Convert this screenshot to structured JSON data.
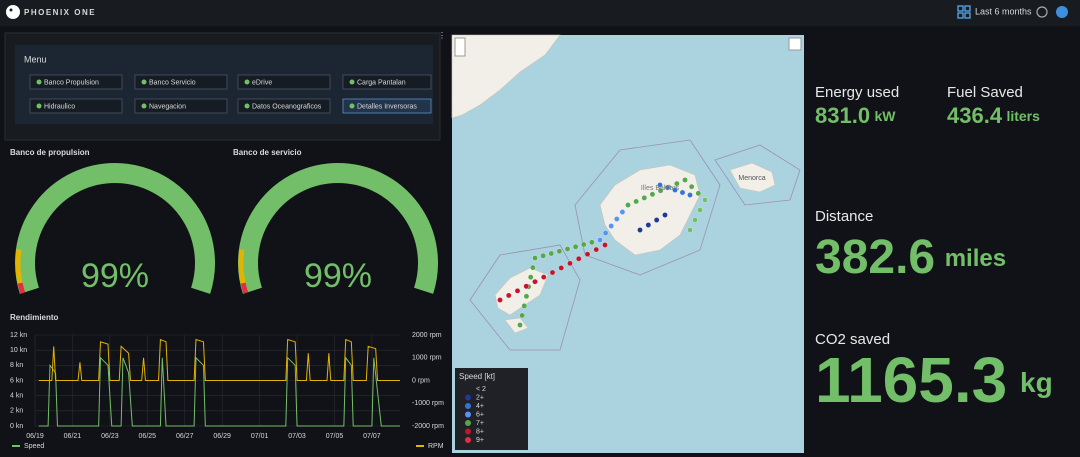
{
  "header": {
    "brand": "PHOENIX ONE",
    "time_range": "Last 6 months"
  },
  "menu": {
    "title": "Menu",
    "items": [
      "Banco Propulsion",
      "Banco Servicio",
      "eDrive",
      "Carga Pantalan",
      "Hidraulico",
      "Navegacion",
      "Datos Oceanograficos",
      "Detalles Inversoras"
    ]
  },
  "gauges": [
    {
      "title": "Banco de propulsion",
      "value": "99%"
    },
    {
      "title": "Banco de servicio",
      "value": "99%"
    }
  ],
  "chart_data": {
    "type": "line",
    "title": "Rendimiento",
    "xlim": [
      0,
      19.5
    ],
    "xticks": [
      {
        "value": 0,
        "label": "06/19"
      },
      {
        "value": 2,
        "label": "06/21"
      },
      {
        "value": 4,
        "label": "06/23"
      },
      {
        "value": 6,
        "label": "06/25"
      },
      {
        "value": 8,
        "label": "06/27"
      },
      {
        "value": 10,
        "label": "06/29"
      },
      {
        "value": 12,
        "label": "07/01"
      },
      {
        "value": 14,
        "label": "07/03"
      },
      {
        "value": 16,
        "label": "07/05"
      },
      {
        "value": 18,
        "label": "07/07"
      }
    ],
    "ylim": [
      0,
      12
    ],
    "yticks": [
      {
        "value": 0,
        "label": "0 kn"
      },
      {
        "value": 2,
        "label": "2 kn"
      },
      {
        "value": 4,
        "label": "4 kn"
      },
      {
        "value": 6,
        "label": "6 kn"
      },
      {
        "value": 8,
        "label": "8 kn"
      },
      {
        "value": 10,
        "label": "10 kn"
      },
      {
        "value": 12,
        "label": "12 kn"
      }
    ],
    "y2lim": [
      -2000,
      2000
    ],
    "y2ticks": [
      {
        "value": -2000,
        "label": "-2000 rpm"
      },
      {
        "value": -1000,
        "label": "-1000 rpm"
      },
      {
        "value": 0,
        "label": "0 rpm"
      },
      {
        "value": 1000,
        "label": "1000 rpm"
      },
      {
        "value": 2000,
        "label": "2000 rpm"
      }
    ],
    "grid": true,
    "series": [
      {
        "name": "Speed",
        "color": "#73bf69",
        "x": [
          0.2,
          0.7,
          0.8,
          1.1,
          1.2,
          3.4,
          3.5,
          3.9,
          4.1,
          4.6,
          4.7,
          5.0,
          5.2,
          6.7,
          6.8,
          7.0,
          8.5,
          8.6,
          9.0,
          9.1,
          13.4,
          13.5,
          13.9,
          14.0,
          16.5,
          16.6,
          16.9,
          17.0,
          18.0,
          18.1,
          18.5,
          19.5
        ],
        "values": [
          0,
          0,
          8,
          7,
          0,
          0,
          9,
          8,
          0,
          0,
          9,
          7,
          0,
          0,
          9,
          0,
          0,
          9,
          8,
          0,
          0,
          9,
          8,
          0,
          0,
          9,
          8,
          0,
          0,
          9,
          0,
          0
        ]
      },
      {
        "name": "RPM",
        "color": "#e0b400",
        "axis": "y2",
        "x": [
          0.2,
          0.9,
          1.0,
          1.1,
          2.3,
          2.4,
          2.5,
          3.4,
          3.5,
          3.9,
          4.0,
          4.5,
          4.6,
          5.0,
          5.1,
          5.7,
          5.8,
          5.9,
          6.6,
          6.7,
          7.0,
          7.1,
          8.5,
          8.6,
          9.0,
          9.1,
          13.4,
          13.5,
          13.9,
          14.0,
          14.5,
          14.6,
          14.7,
          15.6,
          15.7,
          15.8,
          16.5,
          16.6,
          16.9,
          17.0,
          17.7,
          17.8,
          18.2,
          18.3,
          19.5
        ],
        "values": [
          0,
          0,
          1500,
          0,
          0,
          800,
          0,
          0,
          1700,
          1600,
          0,
          0,
          1500,
          1200,
          0,
          0,
          1000,
          0,
          0,
          1800,
          1700,
          0,
          0,
          1800,
          1700,
          0,
          0,
          1800,
          1700,
          0,
          0,
          1200,
          0,
          0,
          1200,
          0,
          0,
          1800,
          1700,
          0,
          0,
          1500,
          1400,
          0,
          0
        ]
      }
    ]
  },
  "map": {
    "labels": [
      "Illes Balears",
      "Menorca"
    ],
    "legend_title": "Speed [kt]",
    "legend": [
      {
        "label": "< 2"
      },
      {
        "label": "2+",
        "color": "#1f3a93"
      },
      {
        "label": "4+",
        "color": "#3274d9"
      },
      {
        "label": "6+",
        "color": "#5794f2"
      },
      {
        "label": "7+",
        "color": "#56a64b"
      },
      {
        "label": "8+",
        "color": "#c4162a"
      },
      {
        "label": "9+",
        "color": "#e02f44"
      }
    ]
  },
  "stats": [
    {
      "label": "Energy used",
      "value": "831.0",
      "unit": "kW"
    },
    {
      "label": "Fuel Saved",
      "value": "436.4",
      "unit": "liters"
    },
    {
      "label": "Distance",
      "value": "382.6",
      "unit": "miles"
    },
    {
      "label": "CO2 saved",
      "value": "1165.3",
      "unit": "kg"
    }
  ]
}
